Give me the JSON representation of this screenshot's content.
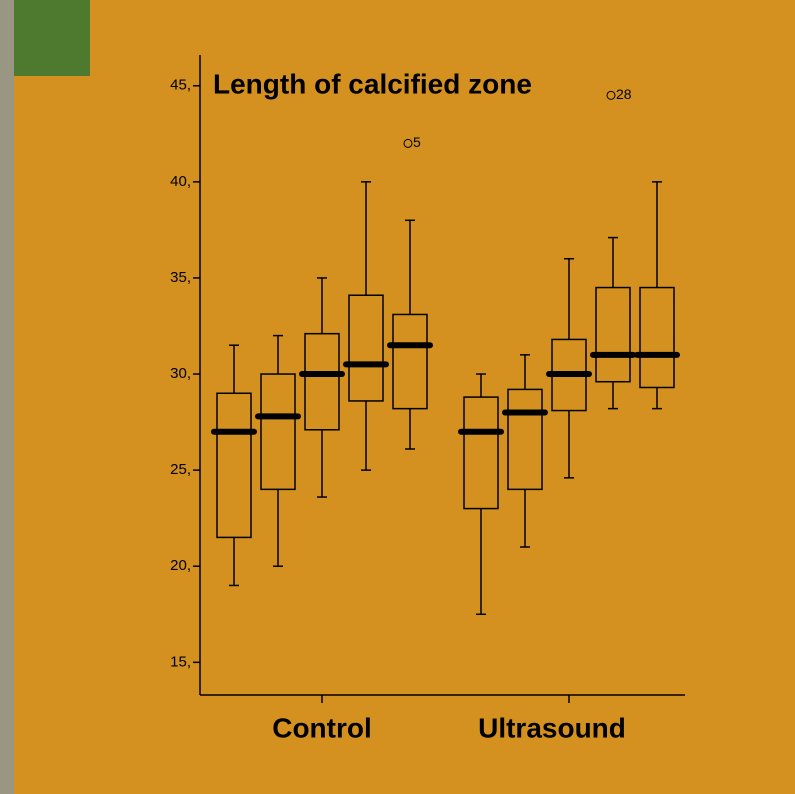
{
  "chart_data": {
    "type": "box",
    "title": "Length of calcified zone",
    "categories": [
      "Control",
      "Ultrasound"
    ],
    "ylim": [
      13.3,
      46.6
    ],
    "yticks": [
      {
        "value": 15,
        "label": "15,"
      },
      {
        "value": 20,
        "label": "20,"
      },
      {
        "value": 25,
        "label": "25,"
      },
      {
        "value": 30,
        "label": "30,"
      },
      {
        "value": 35,
        "label": "35,"
      },
      {
        "value": 40,
        "label": "40,"
      },
      {
        "value": 45,
        "label": "45,"
      }
    ],
    "color": "#000000",
    "groups": [
      {
        "boxes": [
          {
            "whisker_low": 19,
            "q1": 21.5,
            "median": 27,
            "q3": 29,
            "whisker_high": 31.5
          },
          {
            "whisker_low": 20,
            "q1": 24,
            "median": 27.8,
            "q3": 30,
            "whisker_high": 32
          },
          {
            "whisker_low": 23.6,
            "q1": 27.1,
            "median": 30,
            "q3": 32.1,
            "whisker_high": 35
          },
          {
            "whisker_low": 25,
            "q1": 28.6,
            "median": 30.5,
            "q3": 34.1,
            "whisker_high": 40
          },
          {
            "whisker_low": 26.1,
            "q1": 28.2,
            "median": 31.5,
            "q3": 33.1,
            "whisker_high": 38,
            "outliers": [
              {
                "value": 42,
                "label": "5"
              }
            ]
          }
        ]
      },
      {
        "boxes": [
          {
            "whisker_low": 17.5,
            "q1": 23,
            "median": 27,
            "q3": 28.8,
            "whisker_high": 30
          },
          {
            "whisker_low": 21,
            "q1": 24,
            "median": 28,
            "q3": 29.2,
            "whisker_high": 31
          },
          {
            "whisker_low": 24.6,
            "q1": 28.1,
            "median": 30,
            "q3": 31.8,
            "whisker_high": 36
          },
          {
            "whisker_low": 28.2,
            "q1": 29.6,
            "median": 31,
            "q3": 34.5,
            "whisker_high": 37.1,
            "outliers": [
              {
                "value": 44.5,
                "label": "28"
              }
            ]
          },
          {
            "whisker_low": 28.2,
            "q1": 29.3,
            "median": 31,
            "q3": 34.5,
            "whisker_high": 40
          }
        ]
      }
    ]
  }
}
